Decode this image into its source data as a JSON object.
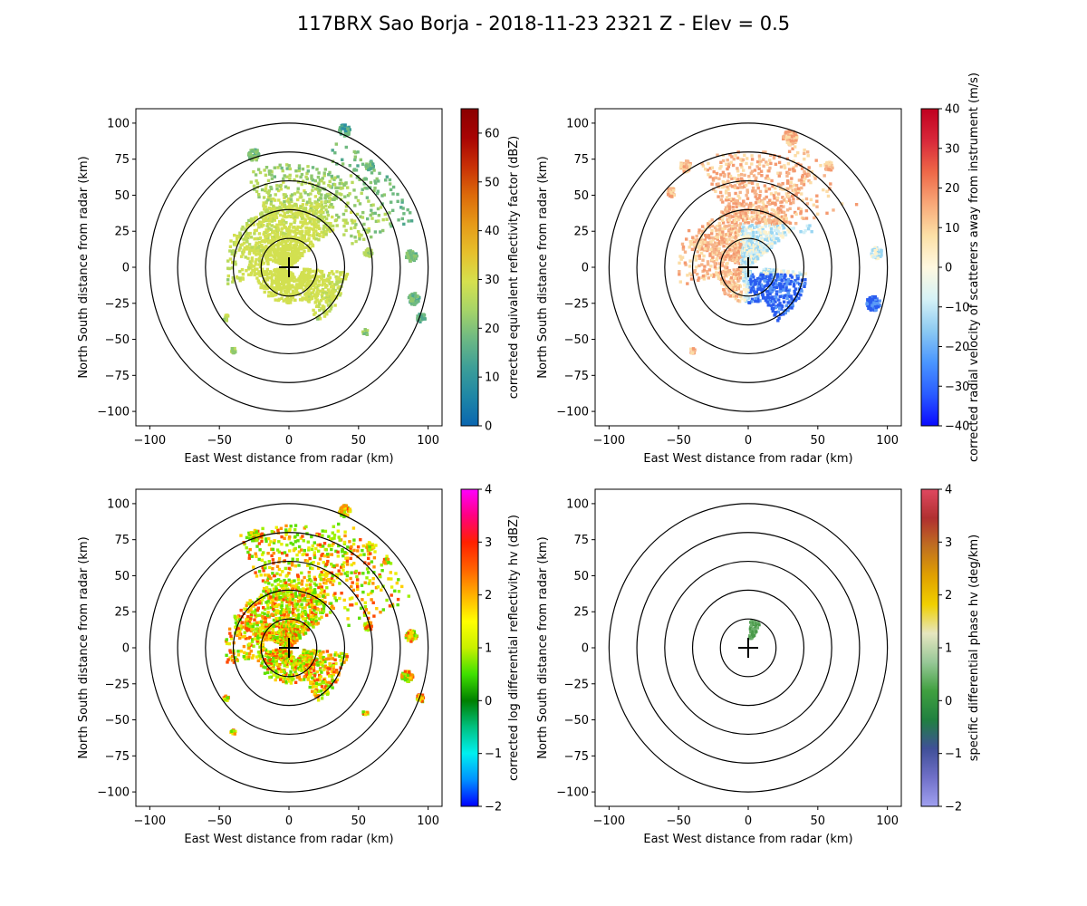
{
  "figure": {
    "title": "117BRX Sao Borja - 2018-11-23 2321 Z -  Elev = 0.5"
  },
  "chart_data": [
    {
      "type": "ppi",
      "id": "p1",
      "xlabel": "East West distance from radar (km)",
      "ylabel": "North South distance from radar (km)",
      "xlim": [
        -110,
        110
      ],
      "ylim": [
        -110,
        110
      ],
      "xticks": [
        -100,
        -50,
        0,
        50,
        100
      ],
      "yticks": [
        -100,
        -75,
        -50,
        -25,
        0,
        25,
        50,
        75,
        100
      ],
      "range_rings_km": [
        20,
        40,
        60,
        80,
        100
      ],
      "radar_location": [
        0,
        0
      ],
      "colorbar": {
        "label": "corrected equivalent reflectivity factor (dBZ)",
        "range": [
          0,
          65
        ],
        "ticks": [
          0,
          10,
          20,
          30,
          40,
          50,
          60
        ],
        "colors": [
          "#0a66b0",
          "#1e86a6",
          "#3c9e98",
          "#6cb884",
          "#a6d468",
          "#d6e04e",
          "#e6c02c",
          "#e69a18",
          "#dc6a0a",
          "#c83006",
          "#a80404",
          "#8a0000"
        ]
      },
      "echo_palette": [
        "#2a8fa2",
        "#4fa88e",
        "#6fba80",
        "#8ec86e",
        "#b8da5c",
        "#d2e050"
      ]
    },
    {
      "type": "ppi",
      "id": "p2",
      "xlabel": "East West distance from radar (km)",
      "ylabel": "North South distance from radar (km)",
      "xlim": [
        -110,
        110
      ],
      "ylim": [
        -110,
        110
      ],
      "xticks": [
        -100,
        -50,
        0,
        50,
        100
      ],
      "yticks": [
        -100,
        -75,
        -50,
        -25,
        0,
        25,
        50,
        75,
        100
      ],
      "range_rings_km": [
        20,
        40,
        60,
        80,
        100
      ],
      "radar_location": [
        0,
        0
      ],
      "colorbar": {
        "label": "corrected radial velocity of scatterers away from instrument (m/s)",
        "range": [
          -40,
          40
        ],
        "ticks": [
          -40,
          -30,
          -20,
          -10,
          0,
          10,
          20,
          30,
          40
        ],
        "colors": [
          "#0a0aff",
          "#2a5cff",
          "#4a96ff",
          "#8ccaf2",
          "#d6f2f6",
          "#fff8e0",
          "#fce0a6",
          "#f8a878",
          "#ee6848",
          "#d8283a",
          "#c00020"
        ]
      },
      "echo_palette": [
        "#f49a70",
        "#f6b48a",
        "#fcdca6",
        "#fff2cc",
        "#cfeef6",
        "#9ad6f2"
      ]
    },
    {
      "type": "ppi",
      "id": "p3",
      "xlabel": "East West distance from radar (km)",
      "ylabel": "North South distance from radar (km)",
      "xlim": [
        -110,
        110
      ],
      "ylim": [
        -110,
        110
      ],
      "xticks": [
        -100,
        -50,
        0,
        50,
        100
      ],
      "yticks": [
        -100,
        -75,
        -50,
        -25,
        0,
        25,
        50,
        75,
        100
      ],
      "range_rings_km": [
        20,
        40,
        60,
        80,
        100
      ],
      "radar_location": [
        0,
        0
      ],
      "colorbar": {
        "label": "corrected log differential reflectivity hv (dBZ)",
        "range": [
          -2,
          4
        ],
        "ticks": [
          -2,
          -1,
          0,
          1,
          2,
          3,
          4
        ],
        "colors": [
          "#0000ff",
          "#0090ff",
          "#00f0f0",
          "#00c080",
          "#008000",
          "#40e000",
          "#c8f000",
          "#ffff00",
          "#ffb000",
          "#ff6000",
          "#ff2000",
          "#ff0080",
          "#ff00ff"
        ]
      },
      "echo_palette": [
        "#5ee000",
        "#9cf000",
        "#e6f000",
        "#ffd000",
        "#ff9000",
        "#ff4a00"
      ]
    },
    {
      "type": "ppi",
      "id": "p4",
      "xlabel": "East West distance from radar (km)",
      "ylabel": "North South distance from radar (km)",
      "xlim": [
        -110,
        110
      ],
      "ylim": [
        -110,
        110
      ],
      "xticks": [
        -100,
        -50,
        0,
        50,
        100
      ],
      "yticks": [
        -100,
        -75,
        -50,
        -25,
        0,
        25,
        50,
        75,
        100
      ],
      "range_rings_km": [
        20,
        40,
        60,
        80,
        100
      ],
      "radar_location": [
        0,
        0
      ],
      "colorbar": {
        "label": "specific differential phase hv (deg/km)",
        "range": [
          -2,
          4
        ],
        "ticks": [
          -2,
          -1,
          0,
          1,
          2,
          3,
          4
        ],
        "colors": [
          "#a0a0f0",
          "#7070c8",
          "#405098",
          "#208040",
          "#40a040",
          "#98c898",
          "#e6e6c0",
          "#f0d000",
          "#e0a000",
          "#c07020",
          "#b03030",
          "#e04860"
        ]
      },
      "echo_palette": [
        "#4a9a4a",
        "#6cb06c"
      ]
    }
  ]
}
